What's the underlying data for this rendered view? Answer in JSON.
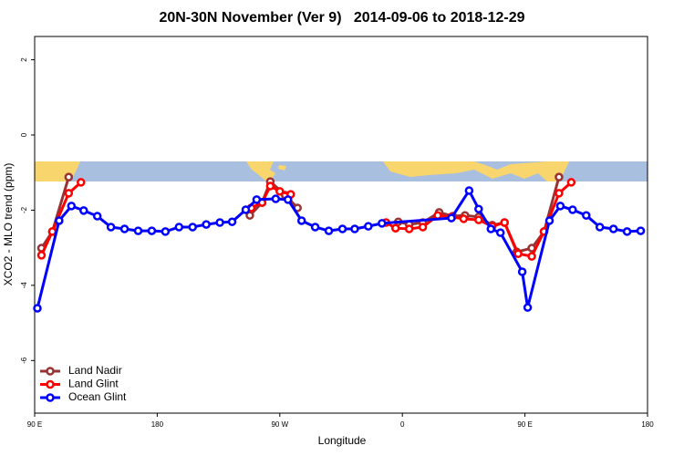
{
  "chart_data": {
    "type": "line",
    "title": "20N-30N November (Ver 9)   2014-09-06 to 2018-12-29",
    "x_label": "Longitude",
    "y_label": "XCO2 - MLO trend (ppm)",
    "xlim": [
      90,
      540
    ],
    "ylim": [
      -7.4,
      2.62
    ],
    "xticks": [
      {
        "value": 90,
        "label": "90 E"
      },
      180,
      {
        "value": 270,
        "label": "90 W"
      },
      {
        "value": 360,
        "label": "0"
      },
      {
        "value": 450,
        "label": "90 E"
      },
      {
        "value": 540,
        "label": "180"
      }
    ],
    "yticks": [
      2,
      0,
      -2,
      -4,
      -6
    ],
    "grid": false,
    "legend": "bottom-left",
    "series": [
      {
        "name": "Land Nadir",
        "color": "#993333",
        "x": [
          95,
          103,
          115,
          null,
          248,
          257,
          263,
          274,
          283,
          null,
          357,
          365,
          375,
          387,
          397,
          406,
          416,
          426,
          435,
          444,
          455,
          464,
          475
        ],
        "values": [
          -3.01,
          -2.57,
          -1.12,
          null,
          -2.14,
          -1.8,
          -1.24,
          -1.6,
          -1.94,
          null,
          -2.31,
          -2.38,
          -2.33,
          -2.06,
          -2.16,
          -2.14,
          -2.18,
          -2.4,
          -2.33,
          -3.11,
          -3.01,
          -2.57,
          -1.12
        ]
      },
      {
        "name": "Land Glint",
        "color": "#ff0000",
        "x": [
          95,
          103,
          115,
          124,
          null,
          249,
          257,
          263,
          270,
          278,
          null,
          348,
          355,
          365,
          375,
          386,
          396,
          405,
          416,
          426,
          435,
          445,
          455,
          464,
          475,
          484
        ],
        "values": [
          -3.2,
          -2.57,
          -1.55,
          -1.26,
          null,
          -1.94,
          -1.8,
          -1.36,
          -1.5,
          -1.58,
          null,
          -2.33,
          -2.48,
          -2.5,
          -2.45,
          -2.14,
          -2.18,
          -2.23,
          -2.26,
          -2.43,
          -2.33,
          -3.16,
          -3.23,
          -2.57,
          -1.55,
          -1.26
        ]
      },
      {
        "name": "Ocean Glint",
        "color": "#0000ff",
        "x": [
          92,
          108,
          117,
          126,
          136,
          146,
          156,
          166,
          176,
          186,
          196,
          206,
          216,
          226,
          235,
          245,
          253,
          267,
          276,
          286,
          296,
          306,
          316,
          325,
          335,
          345,
          396,
          409,
          416,
          425,
          432,
          448,
          452,
          468,
          476,
          485,
          495,
          505,
          515,
          525,
          535
        ],
        "values": [
          -4.61,
          -2.28,
          -1.89,
          -2.01,
          -2.16,
          -2.45,
          -2.5,
          -2.55,
          -2.55,
          -2.57,
          -2.45,
          -2.45,
          -2.38,
          -2.33,
          -2.31,
          -1.99,
          -1.72,
          -1.7,
          -1.72,
          -2.28,
          -2.45,
          -2.55,
          -2.5,
          -2.5,
          -2.43,
          -2.35,
          -2.21,
          -1.48,
          -1.97,
          -2.5,
          -2.6,
          -3.64,
          -4.59,
          -2.28,
          -1.89,
          -1.99,
          -2.14,
          -2.45,
          -2.5,
          -2.57,
          -2.55
        ]
      }
    ]
  }
}
